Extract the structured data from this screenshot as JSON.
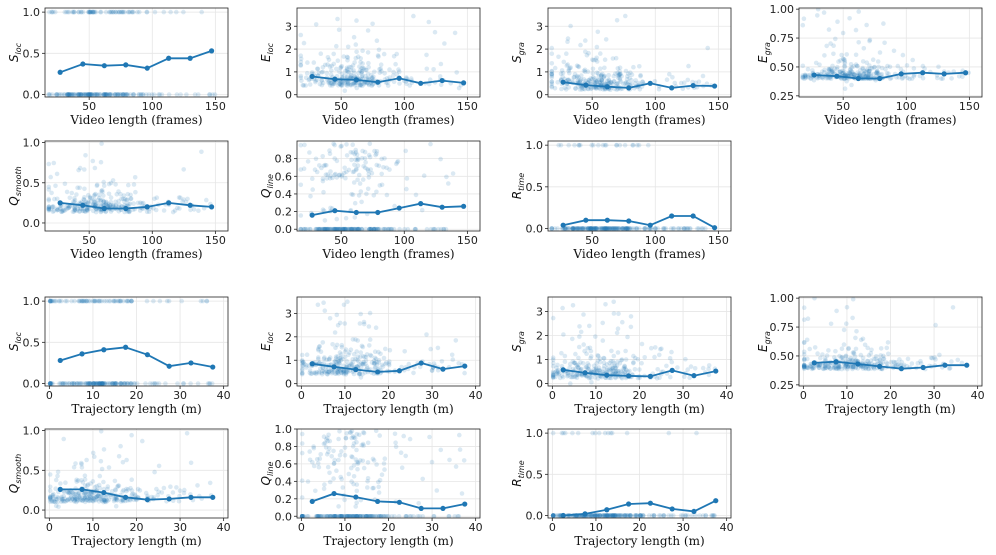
{
  "figure_title": "",
  "chart_data": [
    {
      "id": "vl_Sloc",
      "type": "scatter",
      "xvar": "video",
      "xlabel": "Video length (frames)",
      "ylabel": {
        "base": "S",
        "sub": "loc"
      },
      "xlim": [
        15,
        160
      ],
      "ylim": [
        -0.03,
        1.05
      ],
      "xticks": [
        50,
        100,
        150
      ],
      "yticks": [
        "0.0",
        "0.5",
        "1.0"
      ],
      "points_kind": "binary",
      "points_p": 0.33,
      "x": [
        27,
        45,
        62,
        79,
        96,
        113,
        130,
        147
      ],
      "y": [
        0.27,
        0.37,
        0.35,
        0.36,
        0.32,
        0.44,
        0.44,
        0.53
      ]
    },
    {
      "id": "vl_Eloc",
      "type": "scatter",
      "xvar": "video",
      "xlabel": "Video length (frames)",
      "ylabel": {
        "base": "E",
        "sub": "loc"
      },
      "xlim": [
        15,
        160
      ],
      "ylim": [
        -0.1,
        3.8
      ],
      "xticks": [
        50,
        100,
        150
      ],
      "yticks": [
        "0",
        "1",
        "2",
        "3"
      ],
      "points_kind": "cloud",
      "cloud": {
        "center": 0.6,
        "spread": 0.7,
        "max": 3.6
      },
      "x": [
        27,
        45,
        62,
        79,
        96,
        113,
        130,
        147
      ],
      "y": [
        0.8,
        0.68,
        0.65,
        0.55,
        0.72,
        0.5,
        0.62,
        0.52
      ]
    },
    {
      "id": "vl_Sgra",
      "type": "scatter",
      "xvar": "video",
      "xlabel": "Video length (frames)",
      "ylabel": {
        "base": "S",
        "sub": "gra"
      },
      "xlim": [
        15,
        160
      ],
      "ylim": [
        -0.1,
        3.8
      ],
      "xticks": [
        50,
        100,
        150
      ],
      "yticks": [
        "0",
        "1",
        "2",
        "3"
      ],
      "points_kind": "cloud",
      "cloud": {
        "center": 0.4,
        "spread": 0.6,
        "max": 3.5
      },
      "x": [
        27,
        45,
        62,
        79,
        96,
        113,
        130,
        147
      ],
      "y": [
        0.55,
        0.42,
        0.35,
        0.3,
        0.5,
        0.3,
        0.4,
        0.38
      ]
    },
    {
      "id": "vl_Egra",
      "type": "scatter",
      "xvar": "video",
      "xlabel": "Video length (frames)",
      "ylabel": {
        "base": "E",
        "sub": "gra"
      },
      "xlim": [
        15,
        160
      ],
      "ylim": [
        0.24,
        1.01
      ],
      "xticks": [
        50,
        100,
        150
      ],
      "yticks": [
        "0.25",
        "0.50",
        "0.75",
        "1.00"
      ],
      "points_kind": "cloud",
      "cloud": {
        "center": 0.42,
        "spread": 0.08,
        "max": 1.0,
        "min": 0.3
      },
      "x": [
        27,
        45,
        62,
        79,
        96,
        113,
        130,
        147
      ],
      "y": [
        0.43,
        0.42,
        0.4,
        0.4,
        0.44,
        0.45,
        0.44,
        0.45
      ]
    },
    {
      "id": "vl_Qsmooth",
      "type": "scatter",
      "xvar": "video",
      "xlabel": "Video length (frames)",
      "ylabel": {
        "base": "Q",
        "sub": "smooth"
      },
      "xlim": [
        15,
        160
      ],
      "ylim": [
        -0.1,
        1.02
      ],
      "xticks": [
        50,
        100,
        150
      ],
      "yticks": [
        "0.0",
        "0.5",
        "1.0"
      ],
      "points_kind": "cloud",
      "cloud": {
        "center": 0.18,
        "spread": 0.15,
        "max": 1.0
      },
      "x": [
        27,
        45,
        62,
        79,
        96,
        113,
        130,
        147
      ],
      "y": [
        0.25,
        0.22,
        0.18,
        0.18,
        0.2,
        0.25,
        0.22,
        0.2
      ]
    },
    {
      "id": "vl_Qline",
      "type": "scatter",
      "xvar": "video",
      "xlabel": "Video length (frames)",
      "ylabel": {
        "base": "Q",
        "sub": "line"
      },
      "xlim": [
        15,
        160
      ],
      "ylim": [
        -0.02,
        1.0
      ],
      "xticks": [
        50,
        100,
        150
      ],
      "yticks": [
        "0.0",
        "0.2",
        "0.4",
        "0.6",
        "0.8"
      ],
      "points_kind": "mixed",
      "points_p": 0.55,
      "x": [
        27,
        45,
        62,
        79,
        96,
        113,
        130,
        147
      ],
      "y": [
        0.16,
        0.21,
        0.19,
        0.19,
        0.24,
        0.29,
        0.25,
        0.26
      ]
    },
    {
      "id": "vl_Rtime",
      "type": "scatter",
      "xvar": "video",
      "xlabel": "Video length (frames)",
      "ylabel": {
        "base": "R",
        "sub": "time"
      },
      "xlim": [
        15,
        160
      ],
      "ylim": [
        -0.03,
        1.05
      ],
      "xticks": [
        50,
        100,
        150
      ],
      "yticks": [
        "0.0",
        "0.5",
        "1.0"
      ],
      "points_kind": "binary",
      "points_p": 0.1,
      "x": [
        27,
        45,
        62,
        79,
        96,
        113,
        130,
        147
      ],
      "y": [
        0.04,
        0.1,
        0.1,
        0.09,
        0.04,
        0.15,
        0.15,
        0.01
      ]
    },
    {
      "id": "tl_Sloc",
      "type": "scatter",
      "xvar": "traj",
      "xlabel": "Trajectory length (m)",
      "ylabel": {
        "base": "S",
        "sub": "loc"
      },
      "xlim": [
        -1,
        41
      ],
      "ylim": [
        -0.03,
        1.05
      ],
      "xticks": [
        0,
        10,
        20,
        30,
        40
      ],
      "yticks": [
        "0.0",
        "0.5",
        "1.0"
      ],
      "points_kind": "binary",
      "points_p": 0.35,
      "x": [
        2.5,
        7.5,
        12.5,
        17.5,
        22.5,
        27.5,
        32.5,
        37.5
      ],
      "y": [
        0.28,
        0.36,
        0.41,
        0.44,
        0.35,
        0.21,
        0.25,
        0.2
      ]
    },
    {
      "id": "tl_Eloc",
      "type": "scatter",
      "xvar": "traj",
      "xlabel": "Trajectory length (m)",
      "ylabel": {
        "base": "E",
        "sub": "loc"
      },
      "xlim": [
        -1,
        41
      ],
      "ylim": [
        -0.1,
        3.7
      ],
      "xticks": [
        0,
        10,
        20,
        30,
        40
      ],
      "yticks": [
        "0",
        "1",
        "2",
        "3"
      ],
      "points_kind": "cloud",
      "cloud": {
        "center": 0.6,
        "spread": 0.7,
        "max": 3.5
      },
      "x": [
        2.5,
        7.5,
        12.5,
        17.5,
        22.5,
        27.5,
        32.5,
        37.5
      ],
      "y": [
        0.85,
        0.72,
        0.6,
        0.5,
        0.55,
        0.88,
        0.62,
        0.75
      ]
    },
    {
      "id": "tl_Sgra",
      "type": "scatter",
      "xvar": "traj",
      "xlabel": "Trajectory length (m)",
      "ylabel": {
        "base": "S",
        "sub": "gra"
      },
      "xlim": [
        -1,
        41
      ],
      "ylim": [
        -0.1,
        3.6
      ],
      "xticks": [
        0,
        10,
        20,
        30,
        40
      ],
      "yticks": [
        "0",
        "1",
        "2",
        "3"
      ],
      "points_kind": "cloud",
      "cloud": {
        "center": 0.4,
        "spread": 0.6,
        "max": 3.4
      },
      "x": [
        2.5,
        7.5,
        12.5,
        17.5,
        22.5,
        27.5,
        32.5,
        37.5
      ],
      "y": [
        0.57,
        0.45,
        0.35,
        0.32,
        0.3,
        0.55,
        0.33,
        0.52
      ]
    },
    {
      "id": "tl_Egra",
      "type": "scatter",
      "xvar": "traj",
      "xlabel": "Trajectory length (m)",
      "ylabel": {
        "base": "E",
        "sub": "gra"
      },
      "xlim": [
        -1,
        41
      ],
      "ylim": [
        0.24,
        1.01
      ],
      "xticks": [
        0,
        10,
        20,
        30,
        40
      ],
      "yticks": [
        "0.25",
        "0.50",
        "0.75",
        "1.00"
      ],
      "points_kind": "cloud",
      "cloud": {
        "center": 0.41,
        "spread": 0.08,
        "max": 1.0,
        "min": 0.3
      },
      "x": [
        2.5,
        7.5,
        12.5,
        17.5,
        22.5,
        27.5,
        32.5,
        37.5
      ],
      "y": [
        0.44,
        0.45,
        0.43,
        0.41,
        0.39,
        0.4,
        0.42,
        0.42
      ]
    },
    {
      "id": "tl_Qsmooth",
      "type": "scatter",
      "xvar": "traj",
      "xlabel": "Trajectory length (m)",
      "ylabel": {
        "base": "Q",
        "sub": "smooth"
      },
      "xlim": [
        -1,
        41
      ],
      "ylim": [
        -0.1,
        1.02
      ],
      "xticks": [
        0,
        10,
        20,
        30,
        40
      ],
      "yticks": [
        "0.0",
        "0.5",
        "1.0"
      ],
      "points_kind": "cloud",
      "cloud": {
        "center": 0.14,
        "spread": 0.14,
        "max": 1.0
      },
      "x": [
        2.5,
        7.5,
        12.5,
        17.5,
        22.5,
        27.5,
        32.5,
        37.5
      ],
      "y": [
        0.26,
        0.26,
        0.22,
        0.16,
        0.13,
        0.14,
        0.16,
        0.16
      ]
    },
    {
      "id": "tl_Qline",
      "type": "scatter",
      "xvar": "traj",
      "xlabel": "Trajectory length (m)",
      "ylabel": {
        "base": "Q",
        "sub": "line"
      },
      "xlim": [
        -1,
        41
      ],
      "ylim": [
        -0.02,
        1.0
      ],
      "xticks": [
        0,
        10,
        20,
        30,
        40
      ],
      "yticks": [
        "0.0",
        "0.2",
        "0.4",
        "0.6",
        "0.8",
        "1.0"
      ],
      "points_kind": "mixed",
      "points_p": 0.5,
      "x": [
        2.5,
        7.5,
        12.5,
        17.5,
        22.5,
        27.5,
        32.5,
        37.5
      ],
      "y": [
        0.17,
        0.26,
        0.22,
        0.17,
        0.16,
        0.09,
        0.09,
        0.14
      ]
    },
    {
      "id": "tl_Rtime",
      "type": "scatter",
      "xvar": "traj",
      "xlabel": "Trajectory length (m)",
      "ylabel": {
        "base": "R",
        "sub": "time"
      },
      "xlim": [
        -1,
        41
      ],
      "ylim": [
        -0.03,
        1.05
      ],
      "xticks": [
        0,
        10,
        20,
        30,
        40
      ],
      "yticks": [
        "0.0",
        "0.5",
        "1.0"
      ],
      "points_kind": "binary",
      "points_p": 0.08,
      "x": [
        2.5,
        7.5,
        12.5,
        17.5,
        22.5,
        27.5,
        32.5,
        37.5
      ],
      "y": [
        0.0,
        0.02,
        0.07,
        0.14,
        0.15,
        0.08,
        0.05,
        0.18
      ]
    }
  ],
  "colors": {
    "series": "#1f77b4",
    "scatter": "#1f77b4",
    "grid": "#e6e6e6",
    "axis": "#222222"
  }
}
